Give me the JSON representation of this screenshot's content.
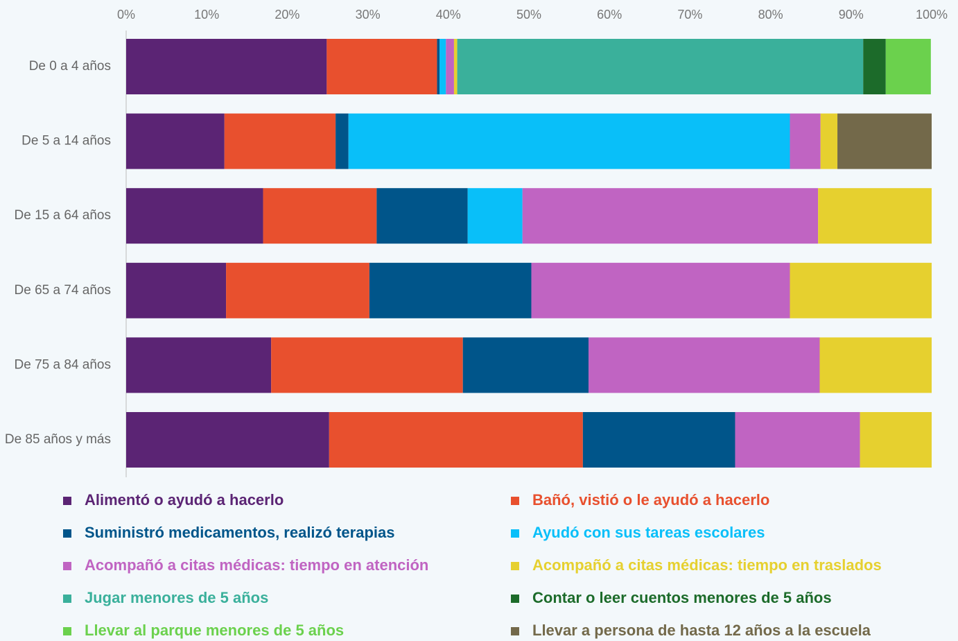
{
  "chart_data": {
    "type": "stacked_bar_horizontal",
    "categories": [
      "De 0 a 4 años",
      "De 5 a 14 años",
      "De 15 a 64 años",
      "De 65 a 74 años",
      "De 75 a 84 años",
      "De 85 años y más"
    ],
    "series": [
      {
        "name": "Alimentó o ayudó a hacerlo",
        "color": "#5b2474",
        "values": [
          24.9,
          12.2,
          17.0,
          12.4,
          18.0,
          25.2
        ]
      },
      {
        "name": "Bañó, vistió o le ayudó a hacerlo",
        "color": "#e8502e",
        "values": [
          13.7,
          13.8,
          14.1,
          17.8,
          23.8,
          31.5
        ]
      },
      {
        "name": "Suministró medicamentos, realizó terapias",
        "color": "#00558a",
        "values": [
          0.3,
          1.6,
          11.3,
          20.1,
          15.6,
          18.9
        ]
      },
      {
        "name": "Ayudó con sus tareas escolares",
        "color": "#09bff9",
        "values": [
          0.8,
          54.8,
          6.8,
          0,
          0,
          0
        ]
      },
      {
        "name": "Acompañó a citas médicas: tiempo en atención",
        "color": "#c064c2",
        "values": [
          1.0,
          3.8,
          36.7,
          32.1,
          28.7,
          15.5
        ]
      },
      {
        "name": "Acompañó a citas médicas: tiempo en traslados",
        "color": "#e6d02f",
        "values": [
          0.4,
          2.1,
          14.1,
          17.6,
          13.9,
          8.9
        ]
      },
      {
        "name": "Jugar menores de 5 años",
        "color": "#3ab09b",
        "values": [
          50.4,
          0,
          0,
          0,
          0,
          0
        ]
      },
      {
        "name": "Contar o leer cuentos menores de 5 años",
        "color": "#1c6b2a",
        "values": [
          2.8,
          0,
          0,
          0,
          0,
          0
        ]
      },
      {
        "name": "Llevar al parque menores de 5 años",
        "color": "#6bd14d",
        "values": [
          5.6,
          0,
          0,
          0,
          0,
          0
        ]
      },
      {
        "name": "Llevar a persona de hasta 12 años a la escuela",
        "color": "#73694a",
        "values": [
          0,
          11.7,
          0,
          0,
          0,
          0
        ]
      }
    ],
    "xlim": [
      0,
      100
    ],
    "xticks": [
      {
        "value": 0,
        "label": "0%"
      },
      {
        "value": 10,
        "label": "10%"
      },
      {
        "value": 20,
        "label": "20%"
      },
      {
        "value": 30,
        "label": "30%"
      },
      {
        "value": 40,
        "label": "40%"
      },
      {
        "value": 50,
        "label": "50%"
      },
      {
        "value": 60,
        "label": "60%"
      },
      {
        "value": 70,
        "label": "70%"
      },
      {
        "value": 80,
        "label": "80%"
      },
      {
        "value": 90,
        "label": "90%"
      },
      {
        "value": 100,
        "label": "100%"
      }
    ]
  }
}
